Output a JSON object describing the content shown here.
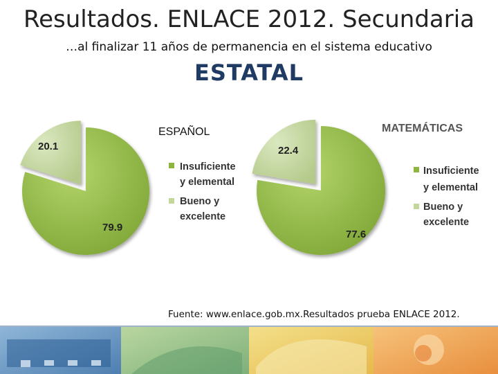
{
  "slide": {
    "title": "Resultados. ENLACE 2012. Secundaria",
    "subtitle": "…al finalizar 11 años de permanencia en el sistema educativo",
    "heading": "ESTATAL",
    "source": "Fuente: www.enlace.gob.mx.Resultados prueba ENLACE 2012."
  },
  "colors": {
    "insuficiente": "#8db53f",
    "bueno": "#c3d69b",
    "heading": "#1f3b64"
  },
  "chart_data": [
    {
      "type": "pie",
      "title": "ESPAÑOL",
      "categories": [
        "Insuficiente y elemental",
        "Bueno y excelente"
      ],
      "values": [
        79.9,
        20.1
      ],
      "labels": [
        "79.9",
        "20.1"
      ],
      "legend": [
        "Insuficiente",
        "y elemental",
        "Bueno y",
        "excelente"
      ],
      "exploded": "Bueno y excelente"
    },
    {
      "type": "pie",
      "title": "MATEMÁTICAS",
      "categories": [
        "Insuficiente y elemental",
        "Bueno y excelente"
      ],
      "values": [
        77.6,
        22.4
      ],
      "labels": [
        "77.6",
        "22.4"
      ],
      "legend": [
        "Insuficiente",
        "y elemental",
        "Bueno y",
        "excelente"
      ],
      "exploded": "Bueno y excelente"
    }
  ]
}
